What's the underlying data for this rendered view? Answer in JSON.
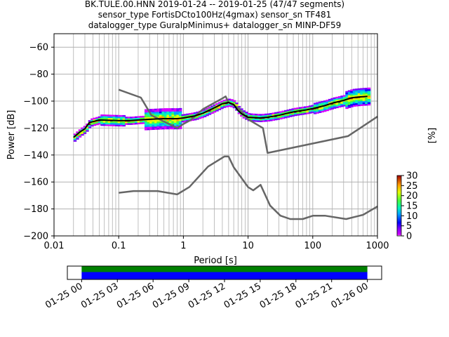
{
  "title": {
    "line1": "BK.TULE.00.HNN   2019-01-24 -- 2019-01-25  (47/47 segments)",
    "line2": "sensor_type FortisDCto100Hz(4gmax) sensor_sn TF481",
    "line3": "datalogger_type GuralpMinimus+ datalogger_sn MINP-DF59"
  },
  "colors": {
    "model_curves": "#666666",
    "mean_curve": "#000000",
    "coverage_green": "#008000",
    "coverage_blue": "#0000ff",
    "grid": "#b0b0b0"
  },
  "chart_data": [
    {
      "type": "heatmap",
      "subtype": "probabilistic power spectral density",
      "xlabel": "Period [s]",
      "ylabel": "Power [dB]",
      "xscale": "log",
      "xlim": [
        0.01,
        1000
      ],
      "ylim": [
        -200,
        -50
      ],
      "x_tick_labels": [
        "0.01",
        "0.1",
        "1",
        "10",
        "100",
        "1000"
      ],
      "y_tick_labels": [
        "−200",
        "−180",
        "−160",
        "−140",
        "−120",
        "−100",
        "−80",
        "−60"
      ],
      "y_ticks": [
        -200,
        -180,
        -160,
        -140,
        -120,
        -100,
        -80,
        -60
      ],
      "x_ticks": [
        0.01,
        0.1,
        1,
        10,
        100,
        1000
      ],
      "grid": true,
      "colorbar": {
        "label": "[%]",
        "range": [
          0,
          30
        ],
        "tick_labels": [
          "0",
          "5",
          "10",
          "15",
          "20",
          "25",
          "30"
        ],
        "ticks": [
          0,
          5,
          10,
          15,
          20,
          25,
          30
        ]
      },
      "noise_model_high": {
        "x": [
          0.1,
          0.22,
          0.32,
          0.8,
          1.0,
          1.3,
          2.0,
          4.0,
          4.5,
          5.0,
          7.0,
          10.0,
          17.0,
          20.0,
          350.0,
          1000.0
        ],
        "y": [
          -91.5,
          -97.4,
          -110.5,
          -120.0,
          -117.0,
          -114.0,
          -106.0,
          -98.0,
          -96.5,
          -101.0,
          -105.0,
          -113.5,
          -120.0,
          -138.5,
          -126.0,
          -111.5
        ]
      },
      "noise_model_low": {
        "x": [
          0.1,
          0.17,
          0.4,
          0.8,
          1.24,
          2.4,
          4.3,
          5.0,
          6.0,
          10.0,
          12.0,
          15.6,
          21.9,
          31.6,
          45.0,
          70.0,
          101.0,
          154.0,
          328.0,
          600.0,
          1000.0
        ],
        "y": [
          -168.0,
          -166.7,
          -166.7,
          -169.2,
          -163.7,
          -148.6,
          -141.1,
          -141.1,
          -149.0,
          -163.8,
          -166.2,
          -162.1,
          -177.5,
          -185.0,
          -187.5,
          -187.5,
          -185.0,
          -185.0,
          -187.5,
          -184.4,
          -178.2
        ]
      },
      "mean_psd": {
        "x": [
          0.02,
          0.025,
          0.03,
          0.035,
          0.05,
          0.1,
          0.15,
          0.2,
          0.3,
          0.5,
          0.8,
          1.0,
          1.5,
          2.0,
          3.0,
          4.0,
          5.0,
          6.0,
          7.0,
          8.0,
          10.0,
          15.0,
          20.0,
          30.0,
          50.0,
          80.0,
          100.0,
          150.0,
          200.0,
          300.0,
          400.0,
          500.0,
          700.0
        ],
        "y": [
          -127.0,
          -123.0,
          -120.5,
          -116.0,
          -114.0,
          -114.5,
          -114.5,
          -114.0,
          -113.5,
          -113.0,
          -113.0,
          -112.5,
          -111.0,
          -109.0,
          -105.0,
          -102.0,
          -101.0,
          -102.5,
          -107.0,
          -109.5,
          -112.0,
          -112.5,
          -112.0,
          -110.5,
          -108.0,
          -106.5,
          -105.5,
          -103.5,
          -101.5,
          -99.5,
          -97.5,
          -97.0,
          -96.5
        ]
      }
    },
    {
      "type": "bar",
      "subtype": "data coverage timeline",
      "x_tick_labels": [
        "01-25 00",
        "01-25 03",
        "01-25 06",
        "01-25 09",
        "01-25 12",
        "01-25 15",
        "01-25 18",
        "01-25 21",
        "01-26 00"
      ],
      "x_range_hours": [
        -1.2,
        25.2
      ],
      "segments": [
        {
          "name": "green",
          "start_hour": 0,
          "end_hour": 24
        },
        {
          "name": "blue",
          "start_hour": 0,
          "end_hour": 24
        }
      ]
    }
  ]
}
